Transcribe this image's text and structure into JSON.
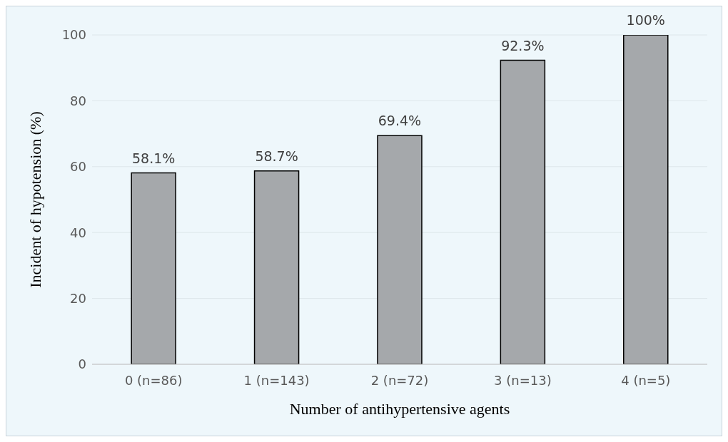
{
  "chart_data": {
    "type": "bar",
    "xlabel": "Number of antihypertensive agents",
    "ylabel": "Incident of hypotension (%)",
    "categories": [
      "0 (n=86)",
      "1 (n=143)",
      "2 (n=72)",
      "3 (n=13)",
      "4 (n=5)"
    ],
    "values": [
      58.1,
      58.7,
      69.4,
      92.3,
      100
    ],
    "color": "#a5a8ab",
    "value_labels": [
      "58.1%",
      "58.7%",
      "69.4%",
      "92.3%",
      "100%"
    ],
    "ylim": [
      0,
      100
    ],
    "yticks": [
      0,
      20,
      40,
      60,
      80,
      100
    ],
    "grid": "y"
  }
}
